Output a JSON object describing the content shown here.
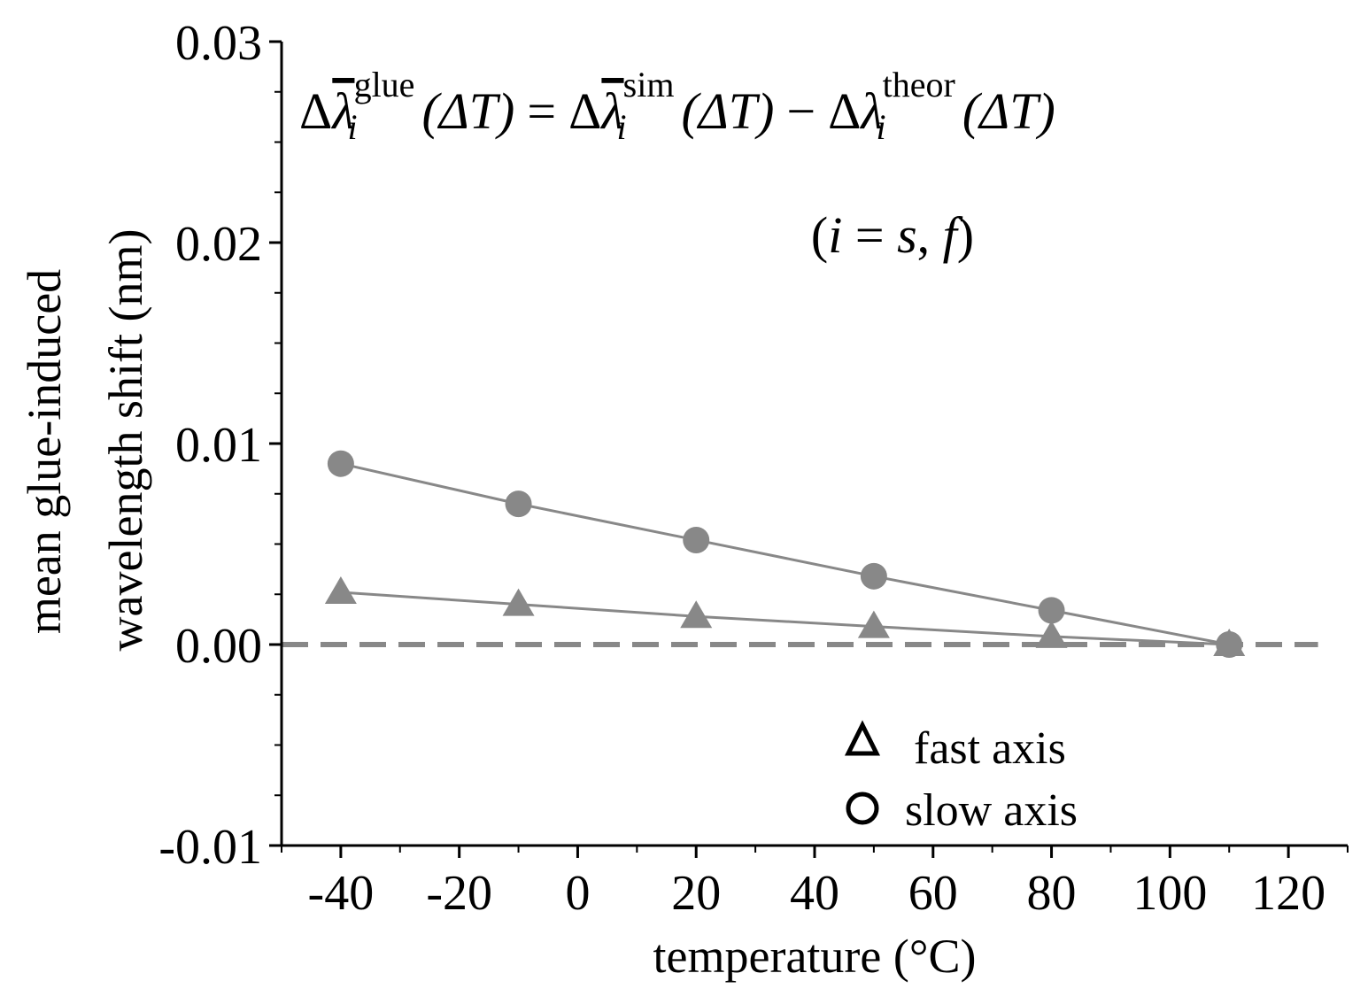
{
  "chart_data": {
    "type": "line",
    "title": "",
    "xlabel": "temperature (°C)",
    "ylabel_line1": "mean glue-induced",
    "ylabel_line2": "wavelength shift (nm)",
    "xlim": [
      -50,
      130
    ],
    "ylim": [
      -0.01,
      0.03
    ],
    "x_ticks": [
      -40,
      -20,
      0,
      20,
      40,
      60,
      80,
      100,
      120
    ],
    "x_tick_labels": [
      "-40",
      "-20",
      "0",
      "20",
      "40",
      "60",
      "80",
      "100",
      "120"
    ],
    "y_ticks": [
      -0.01,
      0.0,
      0.01,
      0.02,
      0.03
    ],
    "y_tick_labels": [
      "-0.01",
      "0.00",
      "0.01",
      "0.02",
      "0.03"
    ],
    "reference_line": {
      "y": 0.0,
      "style": "dashed"
    },
    "x": [
      -40,
      -10,
      20,
      50,
      80,
      110
    ],
    "series": [
      {
        "name": "fast axis",
        "marker": "triangle",
        "values": [
          0.0026,
          0.002,
          0.0014,
          0.0009,
          0.0004,
          0.0
        ]
      },
      {
        "name": "slow axis",
        "marker": "circle",
        "values": [
          0.009,
          0.007,
          0.0052,
          0.0034,
          0.0017,
          0.0
        ]
      }
    ],
    "legend_position": "bottom-right",
    "colors": {
      "series": "#888888",
      "axis": "#000000"
    },
    "annotation": {
      "eq_delta": "Δ",
      "eq_lambda": "λ",
      "eq_sub_i": "i",
      "eq_sup_glue": "glue",
      "eq_sup_sim": "sim",
      "eq_sup_theor": "theor",
      "eq_arg": "(ΔT)",
      "eq_equals": "=",
      "eq_minus": "−",
      "condition_open": "(",
      "condition_i": "i",
      "condition_eq": " = ",
      "condition_s": "s",
      "condition_comma": ", ",
      "condition_f": "f",
      "condition_close": ")"
    }
  }
}
